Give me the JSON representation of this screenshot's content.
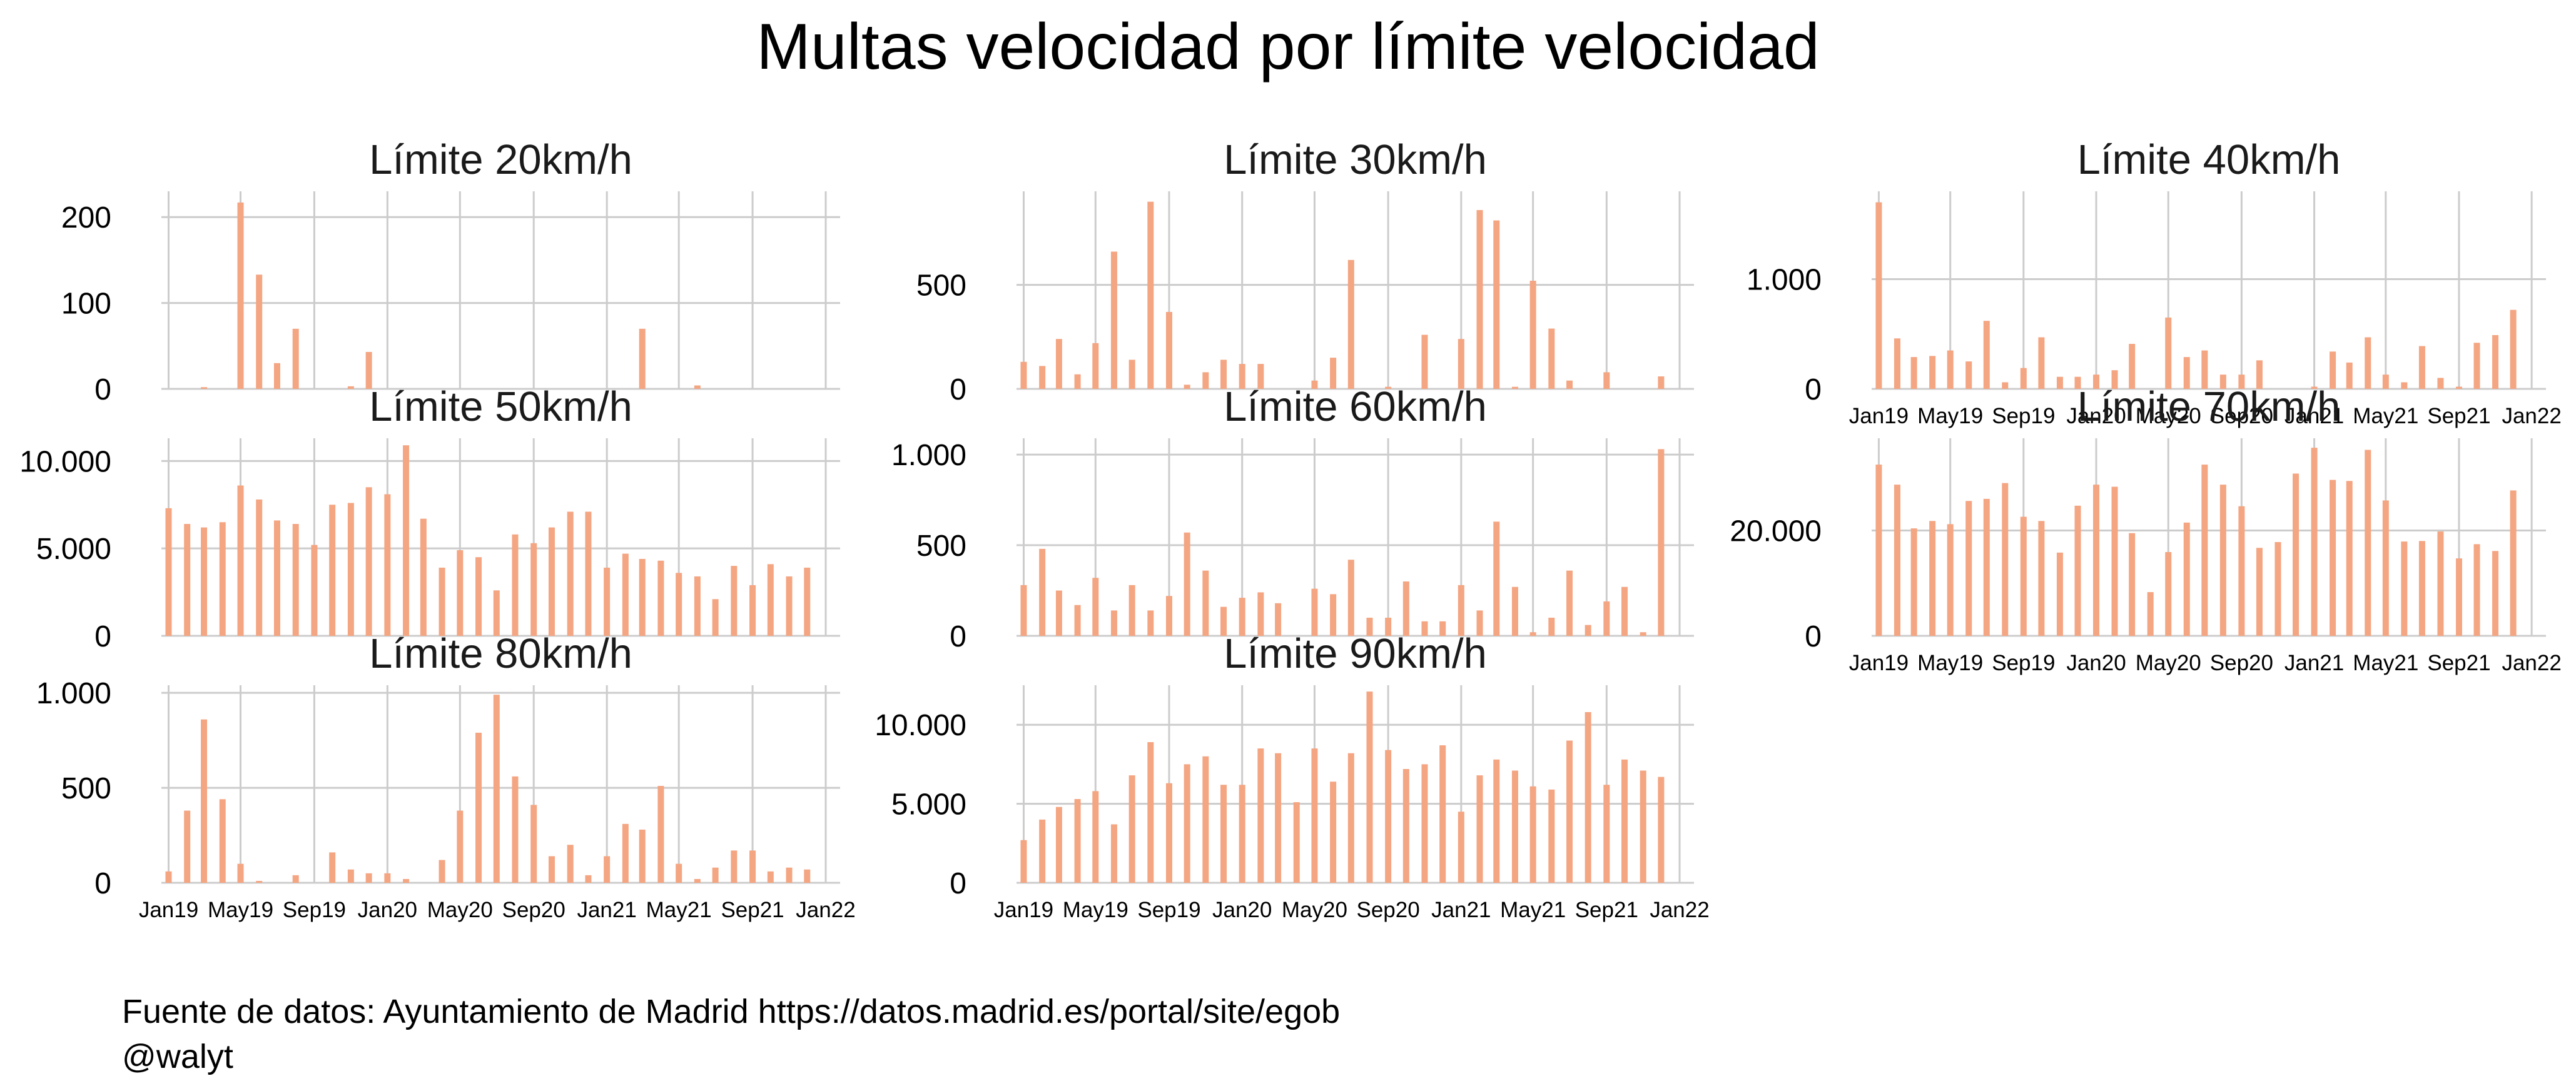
{
  "title": "Multas velocidad por límite velocidad",
  "caption": {
    "source": "Fuente de datos: Ayuntamiento de Madrid https://datos.madrid.es/portal/site/egob",
    "author": "@walyt"
  },
  "colors": {
    "bar": "#F4A582",
    "grid": "#CCCCCC"
  },
  "chart_data": [
    {
      "type": "bar",
      "title": "Límite 20km/h",
      "x": [
        "2019-01",
        "2019-02",
        "2019-03",
        "2019-04",
        "2019-05",
        "2019-06",
        "2019-07",
        "2019-08",
        "2019-09",
        "2019-10",
        "2019-11",
        "2019-12",
        "2020-01",
        "2020-02",
        "2020-03",
        "2020-04",
        "2020-05",
        "2020-06",
        "2020-07",
        "2020-08",
        "2020-09",
        "2020-10",
        "2020-11",
        "2020-12",
        "2021-01",
        "2021-02",
        "2021-03",
        "2021-04",
        "2021-05",
        "2021-06",
        "2021-07",
        "2021-08",
        "2021-09",
        "2021-10",
        "2021-11",
        "2021-12"
      ],
      "values": [
        0,
        0,
        2,
        0,
        217,
        133,
        30,
        70,
        0,
        0,
        3,
        43,
        0,
        0,
        0,
        0,
        0,
        0,
        0,
        0,
        0,
        0,
        0,
        0,
        0,
        0,
        70,
        0,
        0,
        4,
        0,
        0,
        0,
        0,
        0,
        0
      ],
      "ylim": [
        0,
        230
      ],
      "yticks": [
        {
          "v": 0,
          "label": "0"
        },
        {
          "v": 100,
          "label": "100"
        },
        {
          "v": 200,
          "label": "200"
        }
      ],
      "xticks_shown": false,
      "grid": true
    },
    {
      "type": "bar",
      "title": "Límite 30km/h",
      "x": [
        "2019-01",
        "2019-02",
        "2019-03",
        "2019-04",
        "2019-05",
        "2019-06",
        "2019-07",
        "2019-08",
        "2019-09",
        "2019-10",
        "2019-11",
        "2019-12",
        "2020-01",
        "2020-02",
        "2020-03",
        "2020-04",
        "2020-05",
        "2020-06",
        "2020-07",
        "2020-08",
        "2020-09",
        "2020-10",
        "2020-11",
        "2020-12",
        "2021-01",
        "2021-02",
        "2021-03",
        "2021-04",
        "2021-05",
        "2021-06",
        "2021-07",
        "2021-08",
        "2021-09",
        "2021-10",
        "2021-11",
        "2021-12"
      ],
      "values": [
        130,
        110,
        240,
        70,
        220,
        660,
        140,
        900,
        370,
        20,
        80,
        140,
        120,
        120,
        0,
        0,
        40,
        150,
        620,
        0,
        10,
        0,
        260,
        0,
        240,
        860,
        810,
        10,
        520,
        290,
        40,
        0,
        80,
        0,
        0,
        60
      ],
      "ylim": [
        0,
        950
      ],
      "yticks": [
        {
          "v": 0,
          "label": "0"
        },
        {
          "v": 500,
          "label": "500"
        }
      ],
      "xticks_shown": false,
      "grid": true
    },
    {
      "type": "bar",
      "title": "Límite 40km/h",
      "x": [
        "2019-01",
        "2019-02",
        "2019-03",
        "2019-04",
        "2019-05",
        "2019-06",
        "2019-07",
        "2019-08",
        "2019-09",
        "2019-10",
        "2019-11",
        "2019-12",
        "2020-01",
        "2020-02",
        "2020-03",
        "2020-04",
        "2020-05",
        "2020-06",
        "2020-07",
        "2020-08",
        "2020-09",
        "2020-10",
        "2020-11",
        "2020-12",
        "2021-01",
        "2021-02",
        "2021-03",
        "2021-04",
        "2021-05",
        "2021-06",
        "2021-07",
        "2021-08",
        "2021-09",
        "2021-10",
        "2021-11",
        "2021-12"
      ],
      "values": [
        1700,
        460,
        290,
        300,
        350,
        250,
        620,
        60,
        190,
        470,
        110,
        110,
        130,
        170,
        410,
        0,
        650,
        290,
        350,
        130,
        130,
        260,
        0,
        0,
        20,
        340,
        240,
        470,
        130,
        60,
        390,
        100,
        20,
        420,
        490,
        720
      ],
      "ylim": [
        0,
        1800
      ],
      "yticks": [
        {
          "v": 0,
          "label": "0"
        },
        {
          "v": 1000,
          "label": "1.000"
        }
      ],
      "xticks_shown": true,
      "grid": true
    },
    {
      "type": "bar",
      "title": "Límite 50km/h",
      "x": [
        "2019-01",
        "2019-02",
        "2019-03",
        "2019-04",
        "2019-05",
        "2019-06",
        "2019-07",
        "2019-08",
        "2019-09",
        "2019-10",
        "2019-11",
        "2019-12",
        "2020-01",
        "2020-02",
        "2020-03",
        "2020-04",
        "2020-05",
        "2020-06",
        "2020-07",
        "2020-08",
        "2020-09",
        "2020-10",
        "2020-11",
        "2020-12",
        "2021-01",
        "2021-02",
        "2021-03",
        "2021-04",
        "2021-05",
        "2021-06",
        "2021-07",
        "2021-08",
        "2021-09",
        "2021-10",
        "2021-11",
        "2021-12"
      ],
      "values": [
        7300,
        6400,
        6200,
        6500,
        8600,
        7800,
        6600,
        6400,
        5200,
        7500,
        7600,
        8500,
        8100,
        10900,
        6700,
        3900,
        4900,
        4500,
        2600,
        5800,
        5300,
        6200,
        7100,
        7100,
        3900,
        4700,
        4400,
        4300,
        3600,
        3400,
        2100,
        4000,
        2900,
        4100,
        3400,
        3900
      ],
      "ylim": [
        0,
        11300
      ],
      "yticks": [
        {
          "v": 0,
          "label": "0"
        },
        {
          "v": 5000,
          "label": "5.000"
        },
        {
          "v": 10000,
          "label": "10.000"
        }
      ],
      "xticks_shown": false,
      "grid": true
    },
    {
      "type": "bar",
      "title": "Límite 60km/h",
      "x": [
        "2019-01",
        "2019-02",
        "2019-03",
        "2019-04",
        "2019-05",
        "2019-06",
        "2019-07",
        "2019-08",
        "2019-09",
        "2019-10",
        "2019-11",
        "2019-12",
        "2020-01",
        "2020-02",
        "2020-03",
        "2020-04",
        "2020-05",
        "2020-06",
        "2020-07",
        "2020-08",
        "2020-09",
        "2020-10",
        "2020-11",
        "2020-12",
        "2021-01",
        "2021-02",
        "2021-03",
        "2021-04",
        "2021-05",
        "2021-06",
        "2021-07",
        "2021-08",
        "2021-09",
        "2021-10",
        "2021-11",
        "2021-12"
      ],
      "values": [
        280,
        480,
        250,
        170,
        320,
        140,
        280,
        140,
        220,
        570,
        360,
        160,
        210,
        240,
        180,
        0,
        260,
        230,
        420,
        100,
        100,
        300,
        80,
        80,
        280,
        140,
        630,
        270,
        20,
        100,
        360,
        60,
        190,
        270,
        20,
        1030
      ],
      "ylim": [
        0,
        1090
      ],
      "yticks": [
        {
          "v": 0,
          "label": "0"
        },
        {
          "v": 500,
          "label": "500"
        },
        {
          "v": 1000,
          "label": "1.000"
        }
      ],
      "xticks_shown": false,
      "grid": true
    },
    {
      "type": "bar",
      "title": "Límite 70km/h",
      "x": [
        "2019-01",
        "2019-02",
        "2019-03",
        "2019-04",
        "2019-05",
        "2019-06",
        "2019-07",
        "2019-08",
        "2019-09",
        "2019-10",
        "2019-11",
        "2019-12",
        "2020-01",
        "2020-02",
        "2020-03",
        "2020-04",
        "2020-05",
        "2020-06",
        "2020-07",
        "2020-08",
        "2020-09",
        "2020-10",
        "2020-11",
        "2020-12",
        "2021-01",
        "2021-02",
        "2021-03",
        "2021-04",
        "2021-05",
        "2021-06",
        "2021-07",
        "2021-08",
        "2021-09",
        "2021-10",
        "2021-11",
        "2021-12"
      ],
      "values": [
        32500,
        28700,
        20400,
        21800,
        21200,
        25600,
        26000,
        29000,
        22600,
        21800,
        15800,
        24700,
        28700,
        28300,
        19500,
        8300,
        15900,
        21500,
        32500,
        28700,
        24600,
        16700,
        17800,
        30800,
        35700,
        29600,
        29400,
        35300,
        25700,
        17900,
        18000,
        19800,
        14700,
        17400,
        16100,
        27600
      ],
      "ylim": [
        0,
        37500
      ],
      "yticks": [
        {
          "v": 0,
          "label": "0"
        },
        {
          "v": 20000,
          "label": "20.000"
        }
      ],
      "xticks_shown": true,
      "grid": true
    },
    {
      "type": "bar",
      "title": "Límite 80km/h",
      "x": [
        "2019-01",
        "2019-02",
        "2019-03",
        "2019-04",
        "2019-05",
        "2019-06",
        "2019-07",
        "2019-08",
        "2019-09",
        "2019-10",
        "2019-11",
        "2019-12",
        "2020-01",
        "2020-02",
        "2020-03",
        "2020-04",
        "2020-05",
        "2020-06",
        "2020-07",
        "2020-08",
        "2020-09",
        "2020-10",
        "2020-11",
        "2020-12",
        "2021-01",
        "2021-02",
        "2021-03",
        "2021-04",
        "2021-05",
        "2021-06",
        "2021-07",
        "2021-08",
        "2021-09",
        "2021-10",
        "2021-11",
        "2021-12"
      ],
      "values": [
        60,
        380,
        860,
        440,
        100,
        10,
        0,
        40,
        0,
        160,
        70,
        50,
        50,
        20,
        0,
        120,
        380,
        790,
        990,
        560,
        410,
        140,
        200,
        40,
        140,
        310,
        280,
        510,
        100,
        20,
        80,
        170,
        170,
        60,
        80,
        70
      ],
      "ylim": [
        0,
        1040
      ],
      "yticks": [
        {
          "v": 0,
          "label": "0"
        },
        {
          "v": 500,
          "label": "500"
        },
        {
          "v": 1000,
          "label": "1.000"
        }
      ],
      "xticks_shown": true,
      "grid": true
    },
    {
      "type": "bar",
      "title": "Límite 90km/h",
      "x": [
        "2019-01",
        "2019-02",
        "2019-03",
        "2019-04",
        "2019-05",
        "2019-06",
        "2019-07",
        "2019-08",
        "2019-09",
        "2019-10",
        "2019-11",
        "2019-12",
        "2020-01",
        "2020-02",
        "2020-03",
        "2020-04",
        "2020-05",
        "2020-06",
        "2020-07",
        "2020-08",
        "2020-09",
        "2020-10",
        "2020-11",
        "2020-12",
        "2021-01",
        "2021-02",
        "2021-03",
        "2021-04",
        "2021-05",
        "2021-06",
        "2021-07",
        "2021-08",
        "2021-09",
        "2021-10",
        "2021-11",
        "2021-12"
      ],
      "values": [
        2700,
        4000,
        4800,
        5300,
        5800,
        3700,
        6800,
        8900,
        6300,
        7500,
        8000,
        6200,
        6200,
        8500,
        8200,
        5100,
        8500,
        6400,
        8200,
        12100,
        8400,
        7200,
        7500,
        8700,
        4500,
        6800,
        7800,
        7100,
        6100,
        5900,
        9000,
        10800,
        6200,
        7800,
        7100,
        6700
      ],
      "ylim": [
        0,
        12500
      ],
      "yticks": [
        {
          "v": 0,
          "label": "0"
        },
        {
          "v": 5000,
          "label": "5.000"
        },
        {
          "v": 10000,
          "label": "10.000"
        }
      ],
      "xticks_shown": true,
      "grid": true
    }
  ],
  "x_axis": {
    "ticks": [
      {
        "date": "2019-01",
        "label": "Jan19"
      },
      {
        "date": "2019-05",
        "label": "May19"
      },
      {
        "date": "2019-09",
        "label": "Sep19"
      },
      {
        "date": "2020-01",
        "label": "Jan20"
      },
      {
        "date": "2020-05",
        "label": "May20"
      },
      {
        "date": "2020-09",
        "label": "Sep20"
      },
      {
        "date": "2021-01",
        "label": "Jan21"
      },
      {
        "date": "2021-05",
        "label": "May21"
      },
      {
        "date": "2021-09",
        "label": "Sep21"
      },
      {
        "date": "2022-01",
        "label": "Jan22"
      }
    ]
  }
}
